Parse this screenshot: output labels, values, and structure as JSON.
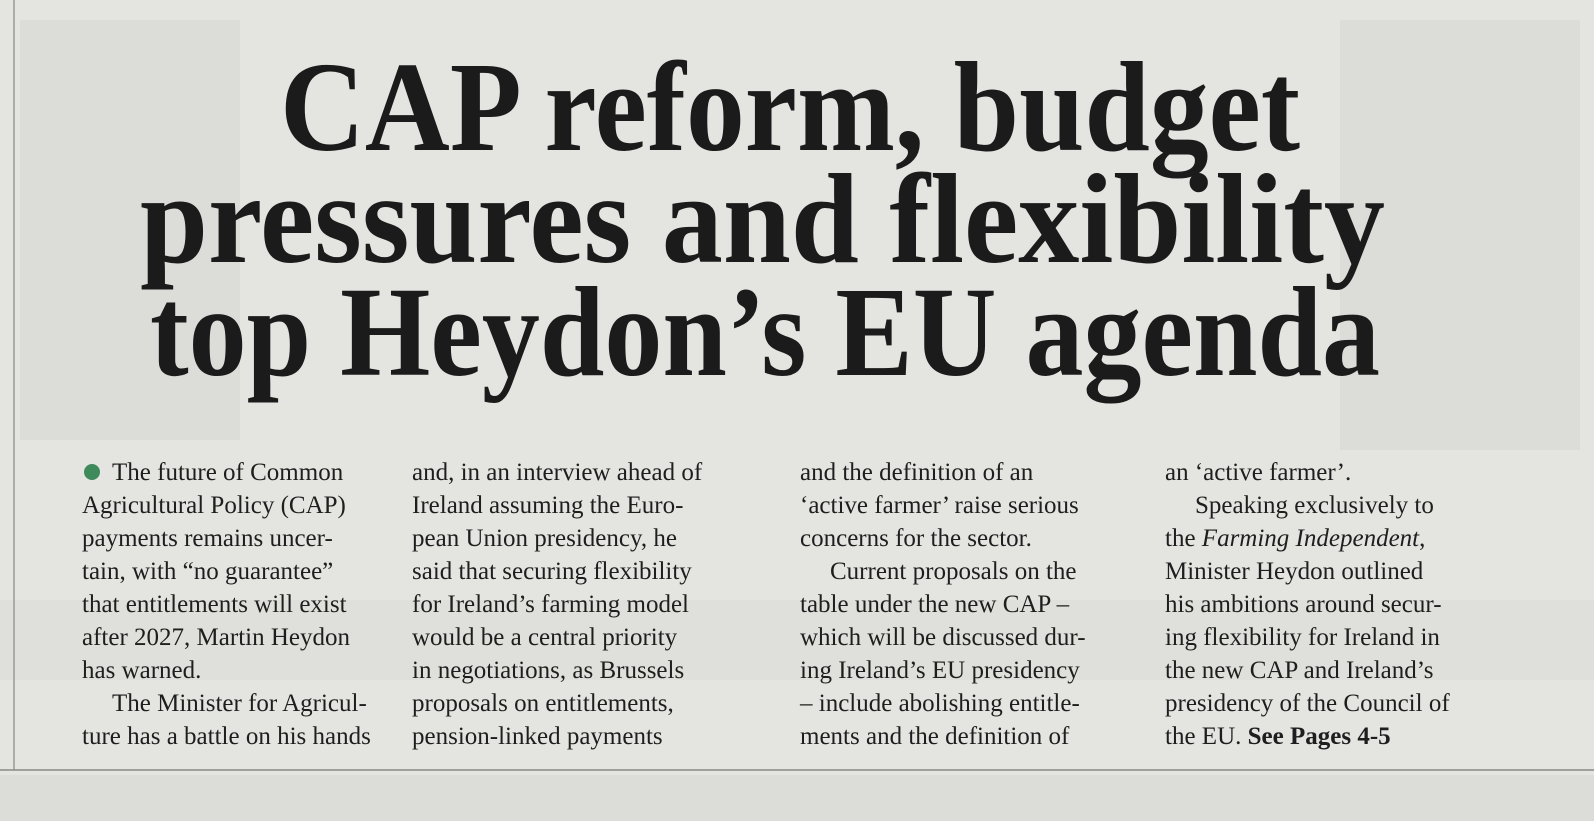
{
  "headline": {
    "lines": [
      "CAP reform, budget",
      "pressures and flexibility",
      "top Heydon’s EU agenda"
    ]
  },
  "columns": [
    {
      "lines": [
        "The future of Common",
        "Agricultural Policy (CAP)",
        "payments remains uncer-",
        "tain, with “no guarantee”",
        "that entitlements will exist",
        "after 2027, Martin Heydon",
        "has warned.",
        "The Minister for Agricul-",
        "ture has a battle on his hands"
      ]
    },
    {
      "lines": [
        "and, in an interview ahead of",
        "Ireland assuming the Euro-",
        "pean Union presidency, he",
        "said that securing flexibility",
        "for Ireland’s farming model",
        "would be a central priority",
        "in negotiations, as Brussels",
        "proposals on entitlements,",
        "pension-linked payments"
      ]
    },
    {
      "lines": [
        "and the definition of an",
        "‘active farmer’ raise serious",
        "concerns for the sector.",
        "Current proposals on the",
        "table under the new CAP –",
        "which will be discussed dur-",
        "ing Ireland’s EU presidency",
        "– include abolishing entitle-",
        "ments and the definition of"
      ]
    },
    {
      "lines": [
        "an ‘active farmer’.",
        "Speaking exclusively to",
        [
          "the ",
          "Farming Independent",
          ","
        ],
        "Minister Heydon outlined",
        "his ambitions around secur-",
        "ing flexibility for Ireland in",
        "the new CAP and Ireland’s",
        "presidency of the Council of",
        [
          "the EU. ",
          "See Pages 4-5"
        ]
      ]
    }
  ]
}
